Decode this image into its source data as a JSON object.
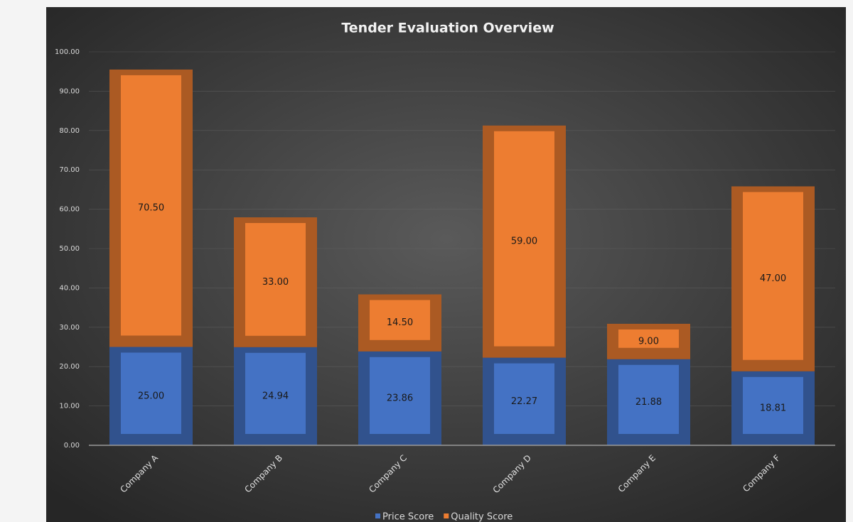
{
  "chart_data": {
    "type": "stacked_bar",
    "title": "Tender Evaluation Overview",
    "categories": [
      "Company A",
      "Company B",
      "Company C",
      "Company D",
      "Company E",
      "Company F"
    ],
    "series": [
      {
        "name": "Price Score",
        "color": "#4472c4",
        "values": [
          25,
          24.94,
          23.86,
          22.27,
          21.88,
          18.81
        ],
        "value_labels": [
          "25.00",
          "24.94",
          "23.86",
          "22.27",
          "21.88",
          "18.81"
        ]
      },
      {
        "name": "Quality Score",
        "color": "#ed7d31",
        "values": [
          70.5,
          33,
          14.5,
          59,
          9,
          47
        ],
        "value_labels": [
          "70.50",
          "33.00",
          "14.50",
          "59.00",
          "9.00",
          "47.00"
        ]
      }
    ],
    "ylim": [
      0,
      100
    ],
    "yticks": [
      {
        "value": 0,
        "label": "0.00"
      },
      {
        "value": 10,
        "label": "10.00"
      },
      {
        "value": 20,
        "label": "20.00"
      },
      {
        "value": 30,
        "label": "30.00"
      },
      {
        "value": 40,
        "label": "40.00"
      },
      {
        "value": 50,
        "label": "50.00"
      },
      {
        "value": 60,
        "label": "60.00"
      },
      {
        "value": 70,
        "label": "70.00"
      },
      {
        "value": 80,
        "label": "80.00"
      },
      {
        "value": 90,
        "label": "90.00"
      },
      {
        "value": 100,
        "label": "100.00"
      }
    ],
    "grid": true,
    "legend": "bottom"
  }
}
